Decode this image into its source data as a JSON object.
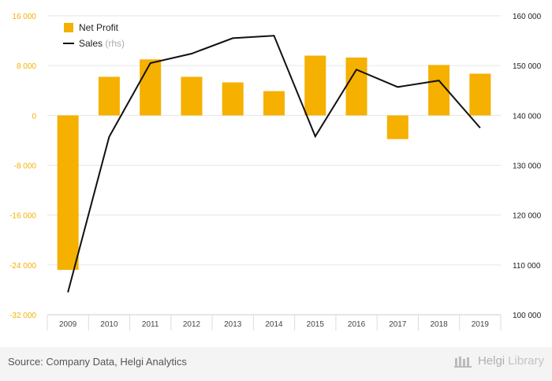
{
  "chart_data": {
    "type": "bar",
    "categories": [
      "2009",
      "2010",
      "2011",
      "2012",
      "2013",
      "2014",
      "2015",
      "2016",
      "2017",
      "2018",
      "2019"
    ],
    "series": [
      {
        "name": "Net Profit",
        "kind": "bar",
        "axis": "left",
        "color": "#f5b000",
        "values": [
          -24800,
          6200,
          9000,
          6200,
          5300,
          3900,
          9600,
          9300,
          -3800,
          8100,
          6700
        ]
      },
      {
        "name": "Sales",
        "kind": "line",
        "axis": "right",
        "color": "#111111",
        "values": [
          104500,
          135700,
          150500,
          152400,
          155500,
          156000,
          135800,
          149200,
          145700,
          147000,
          137500
        ]
      }
    ],
    "y_left": {
      "min": -32000,
      "max": 16000,
      "ticks": [
        "16 000",
        "8 000",
        "0",
        "-8 000",
        "-16 000",
        "-24 000",
        "-32 000"
      ],
      "tick_values": [
        16000,
        8000,
        0,
        -8000,
        -16000,
        -24000,
        -32000
      ],
      "color": "#f5b000"
    },
    "y_right": {
      "min": 100000,
      "max": 160000,
      "ticks": [
        "160 000",
        "150 000",
        "140 000",
        "130 000",
        "120 000",
        "110 000",
        "100 000"
      ],
      "tick_values": [
        160000,
        150000,
        140000,
        130000,
        120000,
        110000,
        100000
      ]
    },
    "legend": {
      "placement": "top-left",
      "items": [
        {
          "label": "Net Profit",
          "suffix": ""
        },
        {
          "label": "Sales",
          "suffix": "(rhs)"
        }
      ]
    },
    "grid": true
  },
  "footer": {
    "source": "Source: Company Data, Helgi Analytics",
    "brand_a": "Helgi",
    "brand_b": "Library"
  }
}
